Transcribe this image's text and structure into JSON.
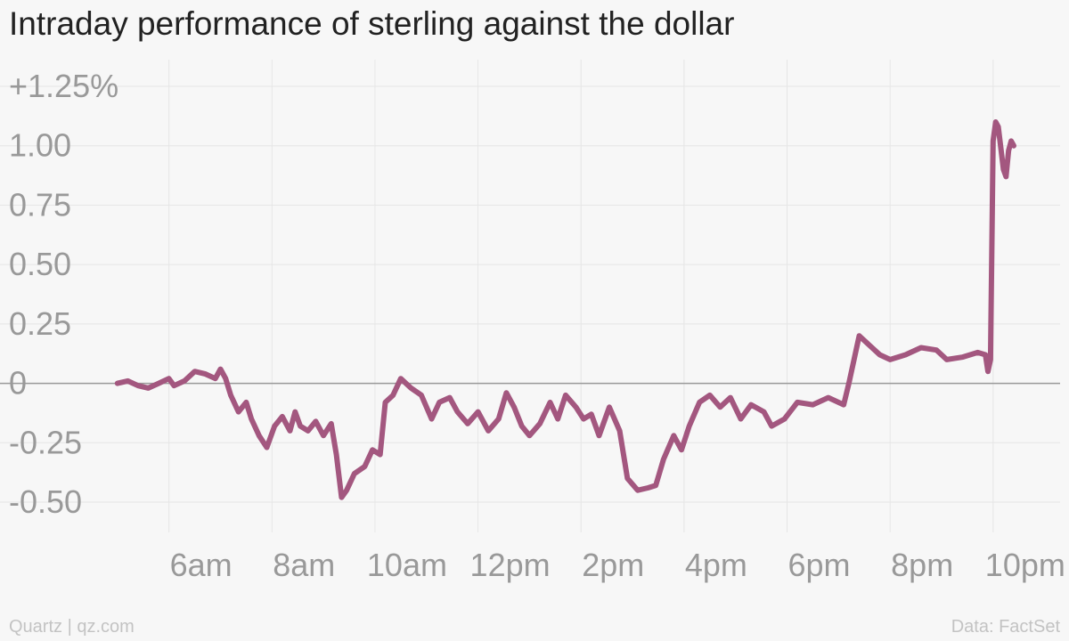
{
  "chart_data": {
    "type": "line",
    "title": "Intraday performance of sterling against the dollar",
    "xlabel": "",
    "ylabel": "",
    "x_tick_labels": [
      "6am",
      "8am",
      "10am",
      "12pm",
      "2pm",
      "4pm",
      "6pm",
      "8pm",
      "10pm"
    ],
    "x_tick_hours": [
      6,
      8,
      10,
      12,
      14,
      16,
      18,
      20,
      22
    ],
    "y_tick_labels": [
      "+1.25%",
      "1.00",
      "0.75",
      "0.50",
      "0.25",
      "0",
      "-0.25",
      "-0.50"
    ],
    "y_tick_values": [
      1.25,
      1.0,
      0.75,
      0.5,
      0.25,
      0,
      -0.25,
      -0.5
    ],
    "ylim": [
      -0.6,
      1.25
    ],
    "xlim_hours": [
      4.0,
      23.3
    ],
    "grid": true,
    "legend": "none",
    "series": [
      {
        "color": "#a3577f",
        "points": [
          [
            5.0,
            0.0
          ],
          [
            5.2,
            0.01
          ],
          [
            5.4,
            -0.01
          ],
          [
            5.6,
            -0.02
          ],
          [
            5.8,
            0.0
          ],
          [
            6.0,
            0.02
          ],
          [
            6.1,
            -0.01
          ],
          [
            6.3,
            0.01
          ],
          [
            6.5,
            0.05
          ],
          [
            6.7,
            0.04
          ],
          [
            6.9,
            0.02
          ],
          [
            7.0,
            0.06
          ],
          [
            7.1,
            0.02
          ],
          [
            7.2,
            -0.05
          ],
          [
            7.35,
            -0.12
          ],
          [
            7.5,
            -0.08
          ],
          [
            7.6,
            -0.15
          ],
          [
            7.75,
            -0.22
          ],
          [
            7.9,
            -0.27
          ],
          [
            8.05,
            -0.18
          ],
          [
            8.2,
            -0.14
          ],
          [
            8.35,
            -0.2
          ],
          [
            8.45,
            -0.12
          ],
          [
            8.55,
            -0.18
          ],
          [
            8.7,
            -0.2
          ],
          [
            8.85,
            -0.16
          ],
          [
            9.0,
            -0.22
          ],
          [
            9.15,
            -0.17
          ],
          [
            9.25,
            -0.3
          ],
          [
            9.35,
            -0.48
          ],
          [
            9.45,
            -0.45
          ],
          [
            9.6,
            -0.38
          ],
          [
            9.8,
            -0.35
          ],
          [
            9.95,
            -0.28
          ],
          [
            10.1,
            -0.3
          ],
          [
            10.2,
            -0.08
          ],
          [
            10.35,
            -0.05
          ],
          [
            10.5,
            0.02
          ],
          [
            10.7,
            -0.02
          ],
          [
            10.9,
            -0.05
          ],
          [
            11.1,
            -0.15
          ],
          [
            11.25,
            -0.08
          ],
          [
            11.45,
            -0.06
          ],
          [
            11.6,
            -0.12
          ],
          [
            11.8,
            -0.17
          ],
          [
            12.0,
            -0.12
          ],
          [
            12.2,
            -0.2
          ],
          [
            12.4,
            -0.15
          ],
          [
            12.55,
            -0.04
          ],
          [
            12.7,
            -0.1
          ],
          [
            12.85,
            -0.18
          ],
          [
            13.0,
            -0.22
          ],
          [
            13.2,
            -0.17
          ],
          [
            13.4,
            -0.08
          ],
          [
            13.55,
            -0.15
          ],
          [
            13.7,
            -0.05
          ],
          [
            13.9,
            -0.1
          ],
          [
            14.05,
            -0.15
          ],
          [
            14.2,
            -0.13
          ],
          [
            14.35,
            -0.22
          ],
          [
            14.55,
            -0.1
          ],
          [
            14.75,
            -0.2
          ],
          [
            14.9,
            -0.4
          ],
          [
            15.1,
            -0.45
          ],
          [
            15.3,
            -0.44
          ],
          [
            15.45,
            -0.43
          ],
          [
            15.6,
            -0.32
          ],
          [
            15.8,
            -0.22
          ],
          [
            15.95,
            -0.28
          ],
          [
            16.1,
            -0.18
          ],
          [
            16.3,
            -0.08
          ],
          [
            16.5,
            -0.05
          ],
          [
            16.7,
            -0.1
          ],
          [
            16.9,
            -0.06
          ],
          [
            17.1,
            -0.15
          ],
          [
            17.3,
            -0.09
          ],
          [
            17.55,
            -0.12
          ],
          [
            17.7,
            -0.18
          ],
          [
            17.95,
            -0.15
          ],
          [
            18.2,
            -0.08
          ],
          [
            18.5,
            -0.09
          ],
          [
            18.8,
            -0.06
          ],
          [
            19.1,
            -0.09
          ],
          [
            19.2,
            0.0
          ],
          [
            19.4,
            0.2
          ],
          [
            19.6,
            0.16
          ],
          [
            19.8,
            0.12
          ],
          [
            20.0,
            0.1
          ],
          [
            20.3,
            0.12
          ],
          [
            20.6,
            0.15
          ],
          [
            20.9,
            0.14
          ],
          [
            21.1,
            0.1
          ],
          [
            21.4,
            0.11
          ],
          [
            21.7,
            0.13
          ],
          [
            21.85,
            0.12
          ],
          [
            21.9,
            0.05
          ],
          [
            21.95,
            0.1
          ],
          [
            22.0,
            1.02
          ],
          [
            22.05,
            1.1
          ],
          [
            22.1,
            1.08
          ],
          [
            22.2,
            0.9
          ],
          [
            22.25,
            0.87
          ],
          [
            22.3,
            0.98
          ],
          [
            22.35,
            1.02
          ],
          [
            22.4,
            1.0
          ]
        ]
      }
    ]
  },
  "footer": {
    "source_left": "Quartz | qz.com",
    "source_right": "Data: FactSet"
  }
}
